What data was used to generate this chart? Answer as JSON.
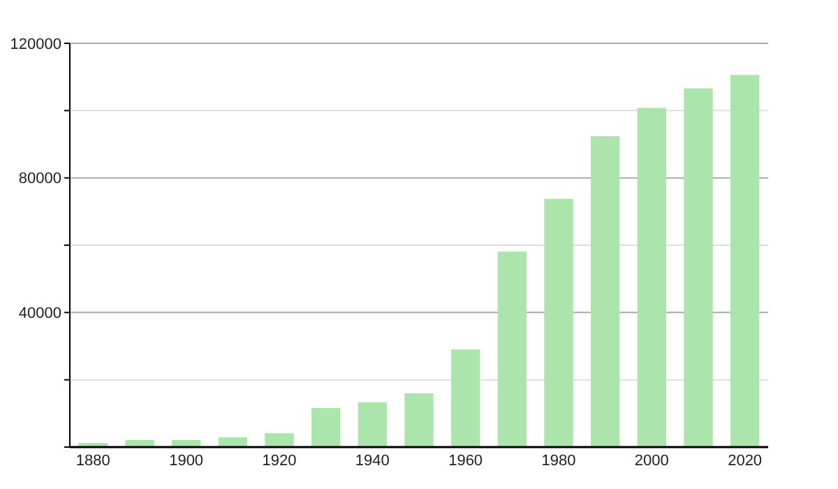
{
  "chart_data": {
    "type": "bar",
    "categories": [
      "1880",
      null,
      "1900",
      null,
      "1920",
      null,
      "1940",
      null,
      "1960",
      null,
      "1980",
      null,
      "2000",
      null,
      "2020"
    ],
    "values": [
      1200,
      2100,
      2100,
      2900,
      4100,
      11600,
      13300,
      16000,
      29000,
      58100,
      73800,
      92400,
      100800,
      106600,
      110600
    ],
    "color": "#ace5ac",
    "ylim": [
      0,
      120000
    ],
    "yticks": [
      {
        "value": 0,
        "label": null
      },
      {
        "value": 20000,
        "label": null
      },
      40000,
      {
        "value": 60000,
        "label": null
      },
      80000,
      {
        "value": 100000,
        "label": null
      },
      120000
    ],
    "grid": "y"
  }
}
